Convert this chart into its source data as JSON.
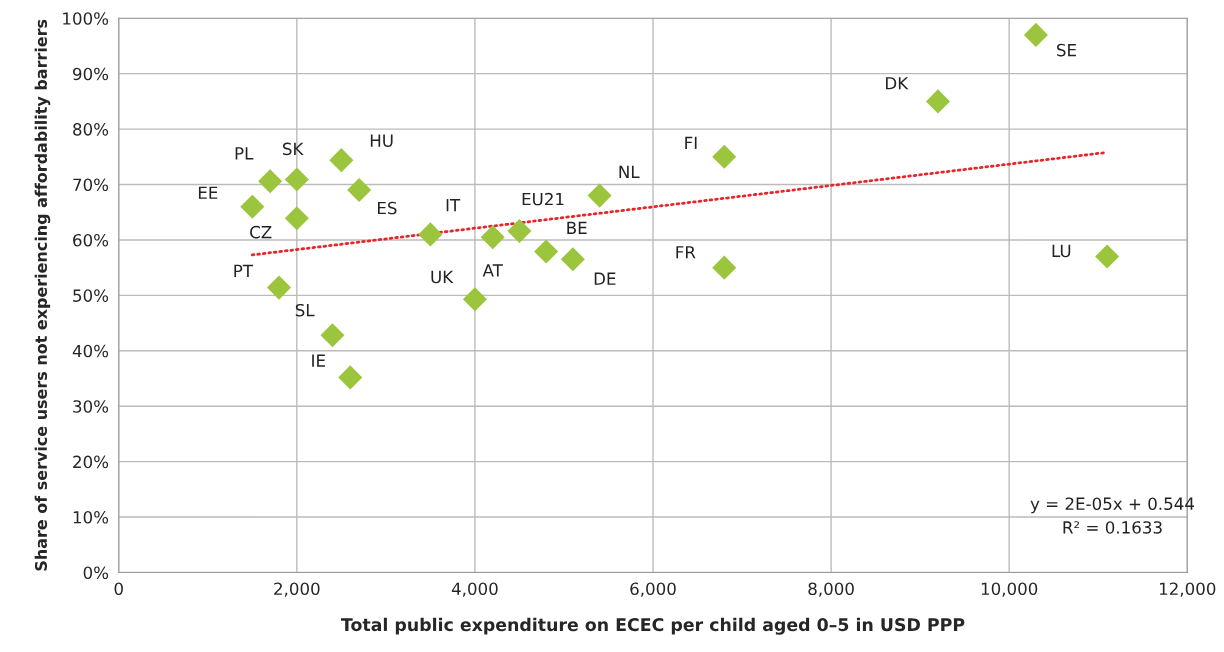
{
  "chart_data": {
    "type": "scatter",
    "xlabel": "Total public expenditure on ECEC per child aged 0–5 in USD PPP",
    "ylabel": "Share of service users not experiencing affordability barriers",
    "xlim": [
      0,
      12000
    ],
    "xticks": [
      0,
      {
        "value": 2000,
        "label": "2,000"
      },
      {
        "value": 4000,
        "label": "4,000"
      },
      {
        "value": 6000,
        "label": "6,000"
      },
      {
        "value": 8000,
        "label": "8,000"
      },
      {
        "value": 10000,
        "label": "10,000"
      },
      {
        "value": 12000,
        "label": "12,000"
      }
    ],
    "ylim": [
      0,
      100
    ],
    "yticks": [
      {
        "value": 0,
        "label": "0%"
      },
      {
        "value": 10,
        "label": "10%"
      },
      {
        "value": 20,
        "label": "20%"
      },
      {
        "value": 30,
        "label": "30%"
      },
      {
        "value": 40,
        "label": "40%"
      },
      {
        "value": 50,
        "label": "50%"
      },
      {
        "value": 60,
        "label": "60%"
      },
      {
        "value": 70,
        "label": "70%"
      },
      {
        "value": 80,
        "label": "80%"
      },
      {
        "value": 90,
        "label": "90%"
      },
      {
        "value": 100,
        "label": "100%"
      }
    ],
    "grid": true,
    "series": [
      {
        "marker": "diamond",
        "color": "#9bc53d",
        "x": [
          1500,
          1700,
          1800,
          2000,
          2000,
          2400,
          2500,
          2600,
          2700,
          3500,
          4000,
          4200,
          4500,
          4800,
          5100,
          5400,
          6800,
          6800,
          9200,
          10300,
          11100
        ],
        "values": [
          66,
          70.6,
          51.4,
          70.9,
          63.9,
          42.8,
          74.4,
          35.2,
          69,
          61,
          49.3,
          60.5,
          61.6,
          57.9,
          56.5,
          68,
          75,
          55,
          85,
          97,
          57
        ],
        "value_labels": [
          "EE",
          "PL",
          "PT",
          "SK",
          "CZ",
          "SL",
          "HU",
          "IE",
          "ES",
          "IT",
          "UK",
          "AT",
          "EU21",
          "BE",
          "DE",
          "NL",
          "FI",
          "FR",
          "DK",
          "SE",
          "LU"
        ]
      },
      {
        "type": "line",
        "marker": "none",
        "color": "#e8262a",
        "line_style": "dotted",
        "x": [
          1500,
          11100
        ],
        "values": [
          57.3,
          75.8
        ]
      }
    ],
    "annotations": [
      "y = 2E-05x + 0.544\nR² = 0.1633"
    ]
  }
}
